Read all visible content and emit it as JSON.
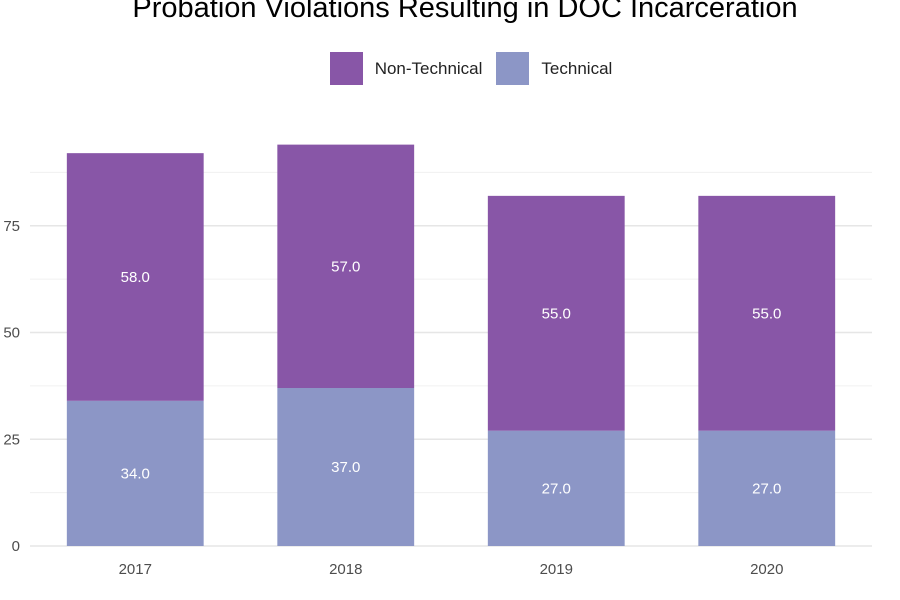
{
  "chart_data": {
    "type": "bar",
    "stacked": true,
    "title": "Probation Violations Resulting in DOC Incarceration",
    "xlabel": "",
    "ylabel": "",
    "categories": [
      "2017",
      "2018",
      "2019",
      "2020"
    ],
    "series": [
      {
        "name": "Technical",
        "color": "#8C96C6",
        "values": [
          34,
          37,
          27,
          27
        ],
        "labels": [
          "34.0",
          "37.0",
          "27.0",
          "27.0"
        ]
      },
      {
        "name": "Non-Technical",
        "color": "#8856A7",
        "values": [
          58,
          57,
          55,
          55
        ],
        "labels": [
          "58.0",
          "57.0",
          "55.0",
          "55.0"
        ]
      }
    ],
    "legend_order": [
      "Non-Technical",
      "Technical"
    ],
    "legend_position": "top",
    "y_ticks": [
      0,
      25,
      50,
      75
    ],
    "ylim": [
      0,
      94
    ],
    "grid": true
  }
}
